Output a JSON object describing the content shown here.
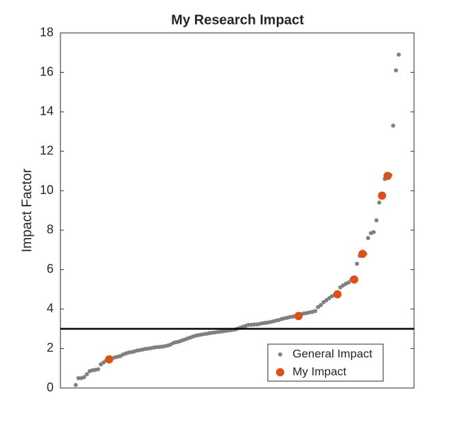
{
  "chart_data": {
    "type": "scatter",
    "title": "My Research Impact",
    "y_label": "Impact Factor",
    "xlim": [
      -4.5,
      122.5
    ],
    "ylim": [
      0,
      18
    ],
    "yticks": [
      0,
      2,
      4,
      6,
      8,
      10,
      12,
      14,
      16,
      18
    ],
    "reference_line": 3,
    "legend_position": "southeast",
    "series": [
      {
        "name": "General Impact",
        "color": "#808080",
        "x": [
          1,
          2,
          3,
          4,
          5,
          6,
          7,
          8,
          9,
          10,
          11,
          12,
          13,
          14,
          15,
          16,
          17,
          18,
          19,
          20,
          21,
          22,
          23,
          24,
          25,
          26,
          27,
          28,
          29,
          30,
          31,
          32,
          33,
          34,
          35,
          36,
          37,
          38,
          39,
          40,
          41,
          42,
          43,
          44,
          45,
          46,
          47,
          48,
          49,
          50,
          51,
          52,
          53,
          54,
          55,
          56,
          57,
          58,
          59,
          60,
          61,
          62,
          63,
          64,
          65,
          66,
          67,
          68,
          69,
          70,
          71,
          72,
          73,
          74,
          75,
          76,
          77,
          78,
          79,
          80,
          81,
          82,
          83,
          84,
          85,
          86,
          87,
          88,
          89,
          90,
          91,
          92,
          93,
          94,
          95,
          96,
          97,
          98,
          99,
          100,
          101,
          102,
          103,
          104,
          105,
          106,
          107,
          108,
          109,
          110,
          111,
          112,
          113,
          114,
          115,
          116,
          117
        ],
        "values": [
          0.15,
          0.5,
          0.5,
          0.55,
          0.7,
          0.85,
          0.9,
          0.92,
          0.95,
          1.2,
          1.3,
          1.4,
          1.45,
          1.5,
          1.55,
          1.58,
          1.62,
          1.7,
          1.75,
          1.8,
          1.82,
          1.85,
          1.9,
          1.92,
          1.95,
          1.98,
          2.0,
          2.02,
          2.05,
          2.07,
          2.08,
          2.1,
          2.12,
          2.15,
          2.2,
          2.28,
          2.32,
          2.35,
          2.4,
          2.45,
          2.5,
          2.55,
          2.6,
          2.65,
          2.68,
          2.7,
          2.73,
          2.75,
          2.78,
          2.8,
          2.82,
          2.84,
          2.86,
          2.88,
          2.9,
          2.92,
          2.94,
          2.96,
          3.0,
          3.05,
          3.1,
          3.15,
          3.2,
          3.2,
          3.22,
          3.22,
          3.25,
          3.28,
          3.3,
          3.32,
          3.35,
          3.38,
          3.42,
          3.45,
          3.5,
          3.53,
          3.56,
          3.6,
          3.62,
          3.65,
          3.7,
          3.75,
          3.78,
          3.8,
          3.83,
          3.86,
          3.9,
          4.1,
          4.2,
          4.35,
          4.45,
          4.55,
          4.65,
          4.72,
          4.85,
          5.1,
          5.2,
          5.28,
          5.35,
          5.5,
          5.6,
          6.3,
          6.7,
          6.8,
          6.8,
          7.6,
          7.85,
          7.9,
          8.5,
          9.4,
          9.75,
          10.6,
          10.75,
          10.8,
          13.3,
          16.1,
          16.9
        ]
      },
      {
        "name": "My Impact",
        "color": "#d95319",
        "x": [
          13,
          81,
          95,
          101,
          104,
          111,
          113
        ],
        "values": [
          1.45,
          3.65,
          4.75,
          5.5,
          6.8,
          9.75,
          10.75
        ]
      }
    ]
  }
}
